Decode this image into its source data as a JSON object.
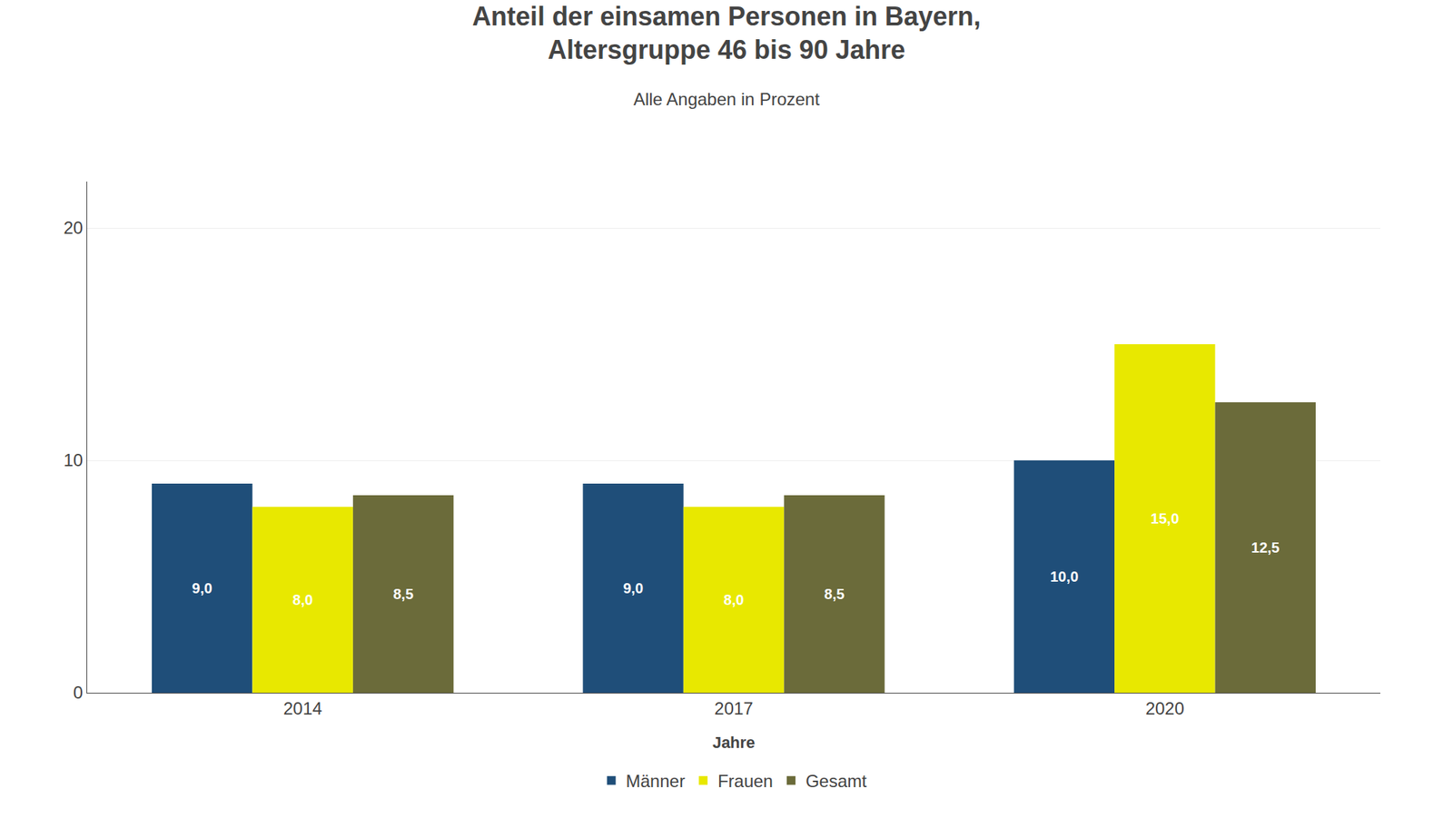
{
  "chart_data": {
    "type": "bar",
    "title": "Anteil der einsamen Personen in Bayern,\nAltersgruppe 46 bis 90 Jahre",
    "subtitle": "Alle Angaben in Prozent",
    "xlabel": "Jahre",
    "categories": [
      "2014",
      "2017",
      "2020"
    ],
    "series": [
      {
        "name": "Männer",
        "color": "#1f4e79",
        "values": [
          9.0,
          9.0,
          10.0
        ],
        "value_labels": [
          "9,0",
          "9,0",
          "10,0"
        ]
      },
      {
        "name": "Frauen",
        "color": "#e8e800",
        "values": [
          8.0,
          8.0,
          15.0
        ],
        "value_labels": [
          "8,0",
          "8,0",
          "15,0"
        ]
      },
      {
        "name": "Gesamt",
        "color": "#6b6b3a",
        "values": [
          8.5,
          8.5,
          12.5
        ],
        "value_labels": [
          "8,5",
          "8,5",
          "12,5"
        ]
      }
    ],
    "ylim": [
      0,
      22
    ],
    "yticks": [
      0,
      10,
      20
    ],
    "grid": true,
    "legend": "bottom",
    "data_labels": true
  }
}
